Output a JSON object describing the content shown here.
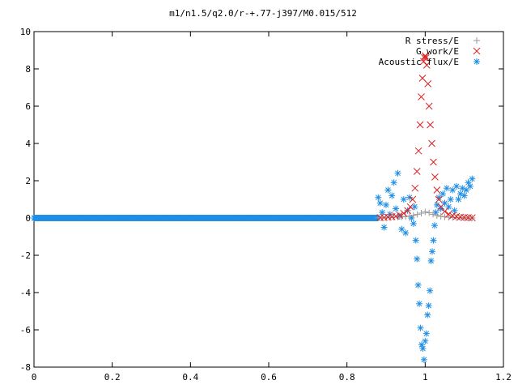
{
  "chart_data": {
    "type": "scatter",
    "title": "m1/n1.5/q2.0/r-+.77-j397/M0.015/512",
    "xlabel": "",
    "ylabel": "",
    "xlim": [
      0,
      1.2
    ],
    "ylim": [
      -8,
      10
    ],
    "x_ticks": [
      0,
      0.2,
      0.4,
      0.6,
      0.8,
      1,
      1.2
    ],
    "x_tick_labels": [
      "0",
      "0.2",
      "0.4",
      "0.6",
      "0.8",
      "1",
      "1.2"
    ],
    "y_ticks": [
      -8,
      -6,
      -4,
      -2,
      0,
      2,
      4,
      6,
      8,
      10
    ],
    "y_tick_labels": [
      "-8",
      "-6",
      "-4",
      "-2",
      "0",
      "2",
      "4",
      "6",
      "8",
      "10"
    ],
    "grid": false,
    "legend_position": "top-right",
    "series": [
      {
        "name": "R stress/E",
        "marker": "plus",
        "color": "#999999",
        "x": [
          0.88,
          0.89,
          0.9,
          0.91,
          0.92,
          0.93,
          0.94,
          0.95,
          0.96,
          0.97,
          0.98,
          0.99,
          1.0,
          1.01,
          1.02,
          1.03,
          1.04,
          1.05,
          1.06,
          1.07,
          1.08,
          1.09,
          1.1,
          1.11,
          1.12
        ],
        "y": [
          0.01,
          0.02,
          0.02,
          0.03,
          0.04,
          0.05,
          0.06,
          0.08,
          0.1,
          0.14,
          0.19,
          0.26,
          0.33,
          0.28,
          0.2,
          0.13,
          0.09,
          0.06,
          0.04,
          0.03,
          0.02,
          0.02,
          0.01,
          0.01,
          0.0
        ]
      },
      {
        "name": "G work/E",
        "marker": "cross",
        "color": "#dd2222",
        "x": [
          0.885,
          0.895,
          0.905,
          0.915,
          0.925,
          0.935,
          0.945,
          0.955,
          0.962,
          0.968,
          0.974,
          0.979,
          0.983,
          0.987,
          0.99,
          0.993,
          0.996,
          0.998,
          1.0,
          1.002,
          1.004,
          1.007,
          1.01,
          1.013,
          1.017,
          1.021,
          1.025,
          1.03,
          1.035,
          1.04,
          1.05,
          1.06,
          1.07,
          1.08,
          1.09,
          1.1,
          1.11,
          1.12
        ],
        "y": [
          0.02,
          0.03,
          0.05,
          0.07,
          0.1,
          0.15,
          0.25,
          0.4,
          0.6,
          1.0,
          1.6,
          2.5,
          3.6,
          5.0,
          6.5,
          7.5,
          8.4,
          8.6,
          8.7,
          8.6,
          8.2,
          7.2,
          6.0,
          5.0,
          4.0,
          3.0,
          2.2,
          1.5,
          1.0,
          0.6,
          0.35,
          0.2,
          0.12,
          0.08,
          0.05,
          0.03,
          0.02,
          0.01
        ]
      },
      {
        "name": "Acoustic flux/E",
        "marker": "star",
        "color": "#1f8ee6",
        "dense_segment": {
          "x_start": 0.0,
          "x_end": 0.88,
          "step": 0.00175,
          "y": 0
        },
        "x": [
          0.88,
          0.885,
          0.89,
          0.895,
          0.9,
          0.905,
          0.91,
          0.915,
          0.92,
          0.925,
          0.93,
          0.935,
          0.94,
          0.945,
          0.95,
          0.955,
          0.96,
          0.965,
          0.97,
          0.973,
          0.976,
          0.979,
          0.982,
          0.985,
          0.988,
          0.991,
          0.994,
          0.997,
          1.0,
          1.003,
          1.006,
          1.009,
          1.012,
          1.015,
          1.018,
          1.021,
          1.024,
          1.027,
          1.03,
          1.035,
          1.04,
          1.045,
          1.05,
          1.055,
          1.06,
          1.065,
          1.07,
          1.075,
          1.08,
          1.085,
          1.09,
          1.095,
          1.1,
          1.105,
          1.11,
          1.115,
          1.12
        ],
        "y": [
          1.1,
          0.8,
          0.3,
          -0.5,
          0.7,
          1.5,
          0.2,
          1.2,
          1.9,
          0.5,
          2.4,
          0.1,
          -0.6,
          1.0,
          -0.8,
          0.4,
          1.1,
          0.0,
          -0.3,
          0.6,
          -1.2,
          -2.2,
          -3.6,
          -4.6,
          -5.9,
          -6.8,
          -7.0,
          -7.6,
          -6.6,
          -6.2,
          -5.2,
          -4.7,
          -3.9,
          -2.3,
          -1.8,
          -1.2,
          -0.4,
          0.3,
          0.7,
          1.1,
          0.5,
          1.3,
          0.8,
          1.6,
          0.6,
          1.0,
          1.5,
          0.4,
          1.7,
          1.0,
          1.3,
          1.6,
          1.2,
          1.5,
          1.9,
          1.7,
          2.1
        ]
      }
    ]
  }
}
